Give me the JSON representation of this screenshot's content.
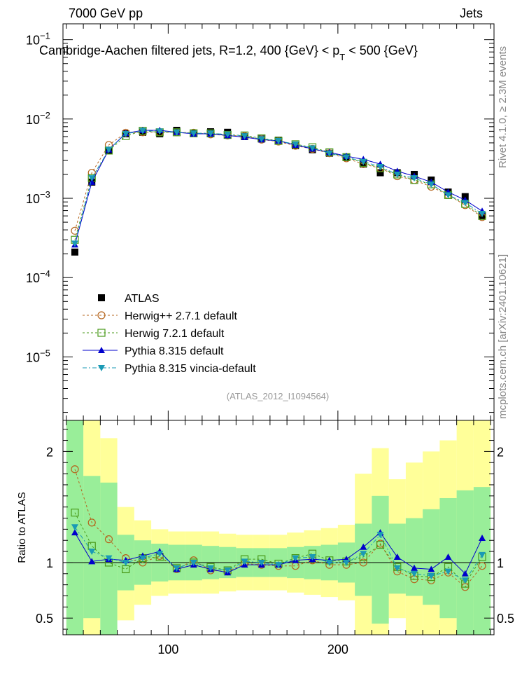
{
  "header": {
    "left": "7000 GeV pp",
    "right": "Jets",
    "title": "Cambridge-Aachen filtered jets, R=1.2, 400 {GeV}     < p",
    "title_sub": "T",
    "title_end": " < 500 {GeV}",
    "side_rivet": "Rivet 4.1.0, ≥ 2.3M events",
    "side_mcplots": "mcplots.cern.ch [arXiv:2401.10621]",
    "ref_id": "(ATLAS_2012_I1094564)"
  },
  "chart_data": [
    {
      "type": "scatter",
      "name": "main",
      "yscale": "log",
      "xlim": [
        38,
        292
      ],
      "ylim_exp": [
        -5.8,
        -0.8
      ],
      "ytick_labels": [
        "10",
        "10",
        "10",
        "10",
        "10"
      ],
      "ytick_exps": [
        "−5",
        "−4",
        "−3",
        "−2",
        "−1"
      ],
      "x": [
        45,
        55,
        65,
        75,
        85,
        95,
        105,
        115,
        125,
        135,
        145,
        155,
        165,
        175,
        185,
        195,
        205,
        215,
        225,
        235,
        245,
        255,
        265,
        275,
        285
      ],
      "series": [
        {
          "name": "ATLAS",
          "label": "ATLAS",
          "color": "#000000",
          "values": [
            0.00021,
            0.0016,
            0.004,
            0.0065,
            0.0068,
            0.0065,
            0.0072,
            0.0066,
            0.0069,
            0.0068,
            0.006,
            0.0056,
            0.0054,
            0.0046,
            0.0041,
            0.0037,
            0.0033,
            0.0027,
            0.0021,
            0.0021,
            0.002,
            0.0017,
            0.0012,
            0.00105,
            0.0006
          ]
        },
        {
          "name": "Herwig++ 2.7.1 default",
          "label": "Herwig++ 2.7.1 default",
          "color": "#b5651d",
          "values": [
            0.00039,
            0.0021,
            0.0047,
            0.0067,
            0.0068,
            0.0068,
            0.0068,
            0.0067,
            0.0064,
            0.0062,
            0.0061,
            0.0055,
            0.0052,
            0.0046,
            0.0042,
            0.0037,
            0.0032,
            0.0027,
            0.0024,
            0.0019,
            0.0017,
            0.0014,
            0.0011,
            0.00082,
            0.00058
          ]
        },
        {
          "name": "Herwig 7.2.1 default",
          "label": "Herwig 7.2.1 default",
          "color": "#4a9a1a",
          "values": [
            0.0003,
            0.0018,
            0.004,
            0.0061,
            0.0071,
            0.0068,
            0.0068,
            0.0066,
            0.0066,
            0.0063,
            0.0062,
            0.0057,
            0.0053,
            0.0048,
            0.0044,
            0.0038,
            0.0033,
            0.0028,
            0.0024,
            0.002,
            0.0017,
            0.0015,
            0.0011,
            0.00085,
            0.0006
          ]
        },
        {
          "name": "Pythia 8.315 default",
          "label": "Pythia 8.315 default",
          "color": "#0000cc",
          "values": [
            0.00026,
            0.0016,
            0.0041,
            0.0066,
            0.0072,
            0.0072,
            0.0068,
            0.0065,
            0.0065,
            0.0062,
            0.0059,
            0.0055,
            0.0053,
            0.0047,
            0.0042,
            0.0038,
            0.0034,
            0.0031,
            0.0027,
            0.0022,
            0.0019,
            0.0016,
            0.0012,
            0.00095,
            0.00069
          ]
        },
        {
          "name": "Pythia 8.315 vincia-default",
          "label": "Pythia 8.315 vincia-default",
          "color": "#1a9ab5",
          "values": [
            0.00027,
            0.0018,
            0.0041,
            0.0065,
            0.0071,
            0.007,
            0.0068,
            0.0066,
            0.0066,
            0.0064,
            0.0061,
            0.0056,
            0.0053,
            0.0048,
            0.0043,
            0.0037,
            0.0033,
            0.0029,
            0.0025,
            0.002,
            0.0018,
            0.0015,
            0.0011,
            0.00088,
            0.00064
          ]
        }
      ]
    },
    {
      "type": "scatter",
      "name": "ratio",
      "ylabel": "Ratio to ATLAS",
      "xlim": [
        38,
        292
      ],
      "ylim": [
        0.35,
        2.28
      ],
      "yticks": [
        0.5,
        1,
        2
      ],
      "ytick_labels": [
        "0.5",
        "1",
        "2"
      ],
      "xticks": [
        100,
        200
      ],
      "xtick_labels": [
        "100",
        "200"
      ],
      "x": [
        45,
        55,
        65,
        75,
        85,
        95,
        105,
        115,
        125,
        135,
        145,
        155,
        165,
        175,
        185,
        195,
        205,
        215,
        225,
        235,
        245,
        255,
        265,
        275,
        285
      ],
      "bin_edges": [
        40,
        50,
        60,
        70,
        80,
        90,
        100,
        110,
        120,
        130,
        140,
        150,
        160,
        170,
        180,
        190,
        200,
        210,
        220,
        230,
        240,
        250,
        260,
        270,
        280,
        290
      ],
      "band_green": [
        [
          0.35,
          2.28
        ],
        [
          0.5,
          1.78
        ],
        [
          0.35,
          1.72
        ],
        [
          0.75,
          1.25
        ],
        [
          0.8,
          1.2
        ],
        [
          0.83,
          1.17
        ],
        [
          0.84,
          1.16
        ],
        [
          0.84,
          1.16
        ],
        [
          0.85,
          1.15
        ],
        [
          0.86,
          1.14
        ],
        [
          0.87,
          1.13
        ],
        [
          0.87,
          1.13
        ],
        [
          0.87,
          1.13
        ],
        [
          0.86,
          1.14
        ],
        [
          0.85,
          1.15
        ],
        [
          0.84,
          1.16
        ],
        [
          0.82,
          1.18
        ],
        [
          0.7,
          1.35
        ],
        [
          0.45,
          1.6
        ],
        [
          0.72,
          1.35
        ],
        [
          0.7,
          1.4
        ],
        [
          0.62,
          1.48
        ],
        [
          0.5,
          1.58
        ],
        [
          0.35,
          1.65
        ],
        [
          0.35,
          1.68
        ]
      ],
      "band_yellow": [
        [
          0.35,
          2.28
        ],
        [
          0.35,
          2.28
        ],
        [
          0.35,
          2.12
        ],
        [
          0.48,
          1.5
        ],
        [
          0.62,
          1.38
        ],
        [
          0.7,
          1.3
        ],
        [
          0.72,
          1.28
        ],
        [
          0.72,
          1.28
        ],
        [
          0.72,
          1.28
        ],
        [
          0.74,
          1.26
        ],
        [
          0.75,
          1.25
        ],
        [
          0.75,
          1.25
        ],
        [
          0.75,
          1.25
        ],
        [
          0.73,
          1.27
        ],
        [
          0.71,
          1.29
        ],
        [
          0.69,
          1.31
        ],
        [
          0.66,
          1.34
        ],
        [
          0.35,
          1.8
        ],
        [
          0.35,
          2.03
        ],
        [
          0.5,
          1.75
        ],
        [
          0.35,
          1.9
        ],
        [
          0.35,
          2.0
        ],
        [
          0.35,
          2.1
        ],
        [
          0.35,
          2.28
        ],
        [
          0.35,
          2.28
        ]
      ],
      "series": [
        {
          "name": "Herwig++ 2.7.1 default",
          "color": "#b5651d",
          "values": [
            1.84,
            1.36,
            1.21,
            1.04,
            1.0,
            1.06,
            0.94,
            1.02,
            0.93,
            0.92,
            0.99,
            0.98,
            0.97,
            0.97,
            1.02,
            0.98,
            0.98,
            1.0,
            1.17,
            0.92,
            0.85,
            0.84,
            0.91,
            0.78,
            0.97
          ]
        },
        {
          "name": "Herwig 7.2.1 default",
          "color": "#4a9a1a",
          "values": [
            1.45,
            1.15,
            1.0,
            0.94,
            1.04,
            1.05,
            0.95,
            1.0,
            0.96,
            0.93,
            1.03,
            1.03,
            0.99,
            1.04,
            1.08,
            1.02,
            1.01,
            1.05,
            1.16,
            0.96,
            0.88,
            0.87,
            0.96,
            0.81,
            1.05
          ]
        },
        {
          "name": "Pythia 8.315 default",
          "color": "#0000cc",
          "values": [
            1.27,
            1.01,
            1.03,
            1.02,
            1.06,
            1.1,
            0.94,
            0.98,
            0.94,
            0.91,
            0.98,
            0.98,
            0.98,
            1.02,
            1.03,
            1.02,
            1.03,
            1.14,
            1.27,
            1.05,
            0.95,
            0.94,
            1.05,
            0.9,
            1.22
          ]
        },
        {
          "name": "Pythia 8.315 vincia-default",
          "color": "#1a9ab5",
          "values": [
            1.32,
            1.1,
            1.04,
            1.0,
            1.04,
            1.08,
            0.95,
            1.0,
            0.95,
            0.93,
            1.01,
            1.0,
            0.98,
            1.04,
            1.05,
            1.0,
            1.0,
            1.08,
            1.25,
            0.95,
            0.9,
            0.88,
            0.92,
            0.84,
            1.07
          ]
        }
      ]
    }
  ]
}
